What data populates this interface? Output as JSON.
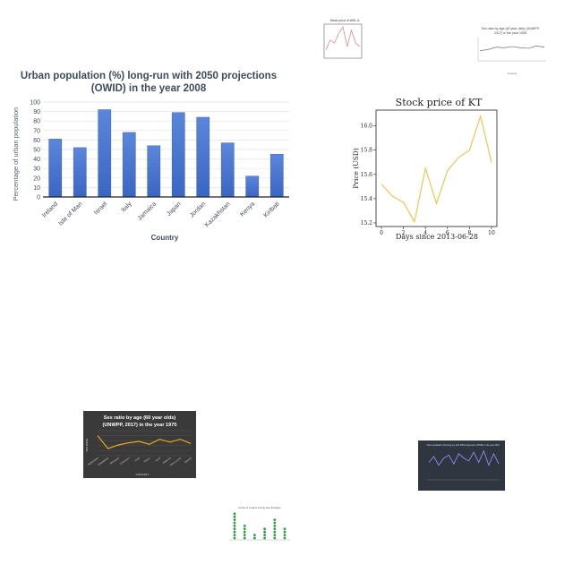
{
  "chart_data": [
    {
      "type": "bar",
      "title": "Urban population (%) long-run with 2050 projections (OWID) in the year 2008",
      "title_lines": [
        "Urban population (%) long-run with 2050 projections",
        "(OWID) in the year 2008"
      ],
      "xlabel": "Country",
      "ylabel": "Percentage of urban population",
      "categories": [
        "Ireland",
        "Isle of Man",
        "Israel",
        "Italy",
        "Jamaica",
        "Japan",
        "Jordan",
        "Kazakhstan",
        "Kenya",
        "Kiribati"
      ],
      "values": [
        61,
        52,
        92,
        68,
        54,
        89,
        84,
        57,
        22,
        45
      ],
      "ylim": [
        0,
        100
      ],
      "yticks": [
        "0",
        "10",
        "20",
        "30",
        "40",
        "50",
        "60",
        "70",
        "80",
        "90",
        "100"
      ],
      "grid": true,
      "colors": {
        "bar": "#3a66c4",
        "bar_light": "#5b86db",
        "text": "#3f4b5b"
      }
    },
    {
      "type": "line",
      "title": "Stock price of KT",
      "xlabel": "Days since 2013-06-28",
      "ylabel": "Price (USD)",
      "x": [
        0,
        1,
        2,
        3,
        4,
        5,
        6,
        7,
        8,
        9,
        10
      ],
      "y": [
        15.52,
        15.42,
        15.37,
        15.21,
        15.65,
        15.36,
        15.63,
        15.74,
        15.8,
        16.08,
        15.7
      ],
      "xticks": [
        "0",
        "2",
        "4",
        "6",
        "8",
        "10"
      ],
      "yticks": [
        "15.2",
        "15.4",
        "15.6",
        "15.8",
        "16.0"
      ],
      "xlim": [
        0,
        10
      ],
      "ylim": [
        15.2,
        16.1
      ],
      "grid": false,
      "colors": {
        "line": "#f3c456"
      }
    },
    {
      "type": "line",
      "title": "Stock price of WSL.A",
      "x": [
        0,
        1,
        2,
        3,
        4,
        5,
        6,
        7,
        8
      ],
      "y": [
        2,
        5,
        4,
        7,
        9,
        3,
        8,
        4,
        3
      ],
      "colors": {
        "line": "#e08a8a"
      }
    },
    {
      "type": "line",
      "title": "Sex ratio by age (60 year olds) (UNWPP, 2017) in the year 1955",
      "title_lines": [
        "Sex ratio by age (60 year olds) (UNWPP,",
        "2017) in the year 1955"
      ],
      "xlabel": "Country",
      "categories": [
        "",
        "",
        "",
        "",
        "",
        "",
        "",
        "",
        ""
      ],
      "values": [
        84,
        86,
        90,
        89,
        91,
        89,
        88,
        92,
        90
      ],
      "colors": {
        "line": "#555555"
      }
    },
    {
      "type": "line",
      "title": "Sex ratio by age (60 year olds) (UNWPP, 2017) in the year 1975",
      "title_lines": [
        "Sex ratio by age (60 year olds)",
        "(UNWPP, 2017) in the year 1975"
      ],
      "xlabel": "COUNTRY",
      "ylabel": "SEX RATIO",
      "categories": [
        "Afghanistan",
        "Bangladesh",
        "Botswana",
        "Cameroon",
        "Chad",
        "Gabon",
        "Israel",
        "Malaysia",
        "Sierra Leone",
        "Uganda"
      ],
      "values": [
        98,
        80,
        85,
        88,
        90,
        86,
        93,
        89,
        93,
        87
      ],
      "colors": {
        "line": "#e6a817",
        "background": "#3a3a3a"
      }
    },
    {
      "type": "line",
      "title": "Urban population (%) long-run with 2050 projections (OWID) in the year 2010",
      "categories": [
        "",
        "",
        "",
        "",
        "",
        "",
        "",
        "",
        "",
        "",
        "",
        "",
        "",
        "",
        ""
      ],
      "values": [
        55,
        75,
        45,
        70,
        80,
        50,
        85,
        70,
        60,
        90,
        55,
        95,
        45,
        85,
        50
      ],
      "colors": {
        "line": "#8c8cf0",
        "background": "#2f3640"
      }
    },
    {
      "type": "scatter",
      "title": "Number of in-patient and day-case discharges",
      "categories": [
        "",
        "",
        "",
        "",
        "",
        ""
      ],
      "values": [
        9,
        5,
        2,
        4,
        7,
        4
      ],
      "colors": {
        "point": "#2e9e3e"
      }
    }
  ]
}
